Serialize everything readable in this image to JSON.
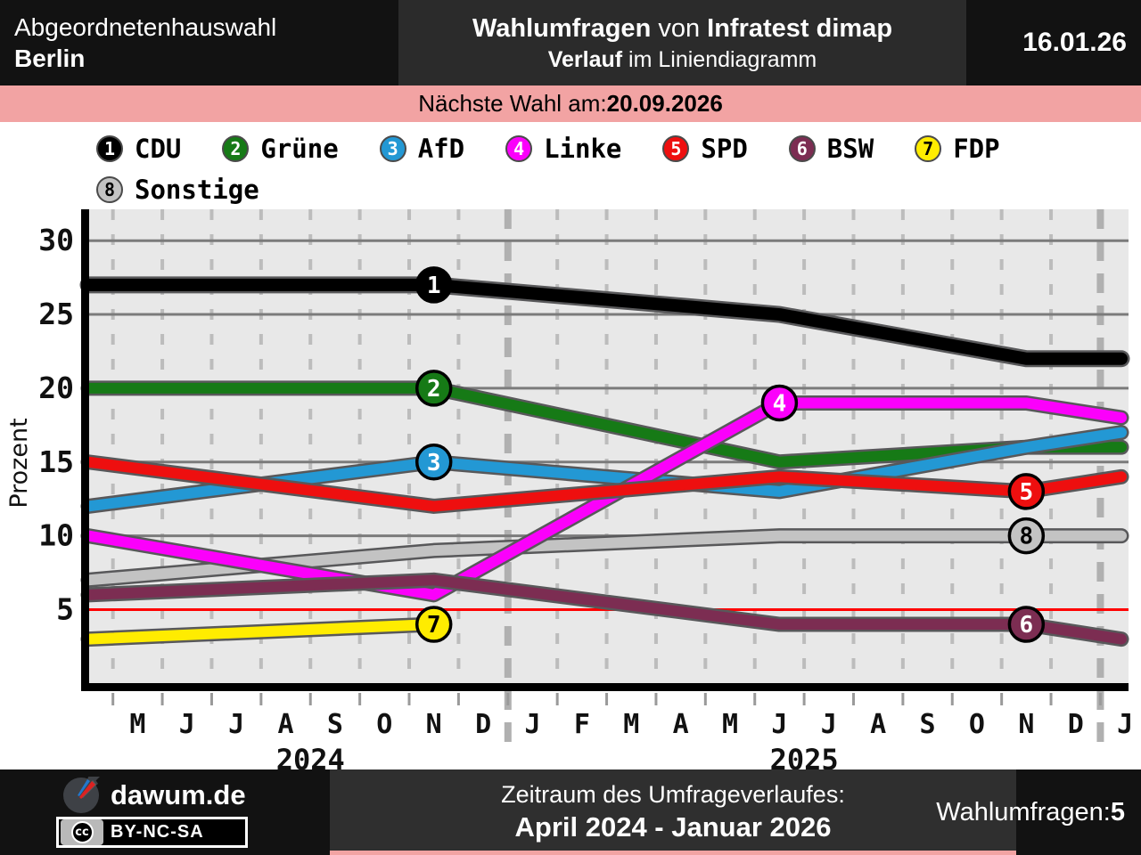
{
  "header": {
    "election_line1": "Abgeordnetenhauswahl",
    "election_line2": "Berlin",
    "title_bold1": "Wahlumfragen",
    "title_sep": " von ",
    "title_bold2": "Infratest dimap",
    "subtitle_bold": "Verlauf",
    "subtitle_rest": " im Liniendiagramm",
    "date": "16.01.26"
  },
  "banner": {
    "label": "Nächste Wahl am: ",
    "date": "20.09.2026",
    "bg_color": "#f2a3a3"
  },
  "legend": {
    "items": [
      {
        "num": "1",
        "label": "CDU",
        "color": "#000000",
        "num_color": "#ffffff"
      },
      {
        "num": "2",
        "label": "Grüne",
        "color": "#167a16",
        "num_color": "#ffffff"
      },
      {
        "num": "3",
        "label": "AfD",
        "color": "#2398d4",
        "num_color": "#ffffff"
      },
      {
        "num": "4",
        "label": "Linke",
        "color": "#fb00fb",
        "num_color": "#ffffff"
      },
      {
        "num": "5",
        "label": "SPD",
        "color": "#ee0f0f",
        "num_color": "#ffffff"
      },
      {
        "num": "6",
        "label": "BSW",
        "color": "#7c2d52",
        "num_color": "#ffffff"
      },
      {
        "num": "7",
        "label": "FDP",
        "color": "#ffec00",
        "num_color": "#000000"
      },
      {
        "num": "8",
        "label": "Sonstige",
        "color": "#c3c3c3",
        "num_color": "#000000"
      }
    ]
  },
  "chart_data": {
    "type": "line",
    "title": "Wahlumfragen von Infratest dimap – Verlauf im Liniendiagramm",
    "ylabel": "Prozent",
    "yticks": [
      5,
      10,
      15,
      20,
      25,
      30
    ],
    "ylim": [
      0,
      32
    ],
    "grid": true,
    "threshold": {
      "value": 5,
      "color": "#ff0000"
    },
    "months": [
      "M",
      "J",
      "J",
      "A",
      "S",
      "O",
      "N",
      "D",
      "J",
      "F",
      "M",
      "A",
      "M",
      "J",
      "J",
      "A",
      "S",
      "O",
      "N",
      "D",
      "J"
    ],
    "years": [
      {
        "label": "2024",
        "from_month": 1,
        "to_month": 8
      },
      {
        "label": "2025",
        "from_month": 9,
        "to_month": 20
      }
    ],
    "year_separator_boundaries": [
      8.5,
      20.5
    ],
    "poll_dates": [
      "2024-04",
      "2024-11",
      "2025-06",
      "2025-11",
      "2026-01"
    ],
    "poll_month_index": [
      0,
      7,
      14,
      19,
      21
    ],
    "series": [
      {
        "num": "1",
        "name": "CDU",
        "color": "#000000",
        "badge_text_color": "#ffffff",
        "badge_poll": 1,
        "values": [
          27,
          27,
          25,
          22,
          22
        ]
      },
      {
        "num": "2",
        "name": "Grüne",
        "color": "#167a16",
        "badge_text_color": "#ffffff",
        "badge_poll": 1,
        "values": [
          20,
          20,
          15,
          16,
          16
        ]
      },
      {
        "num": "3",
        "name": "AfD",
        "color": "#2398d4",
        "badge_text_color": "#ffffff",
        "badge_poll": 1,
        "values": [
          12,
          15,
          13,
          16,
          17
        ]
      },
      {
        "num": "4",
        "name": "Linke",
        "color": "#fb00fb",
        "badge_text_color": "#ffffff",
        "badge_poll": 2,
        "values": [
          10,
          6,
          19,
          19,
          18
        ]
      },
      {
        "num": "5",
        "name": "SPD",
        "color": "#ee0f0f",
        "badge_text_color": "#ffffff",
        "badge_poll": 3,
        "values": [
          15,
          12,
          14,
          13,
          14
        ]
      },
      {
        "num": "6",
        "name": "BSW",
        "color": "#7c2d52",
        "badge_text_color": "#ffffff",
        "badge_poll": 3,
        "values": [
          6,
          7,
          4,
          4,
          3
        ]
      },
      {
        "num": "7",
        "name": "FDP",
        "color": "#ffec00",
        "badge_text_color": "#000000",
        "badge_poll": 1,
        "values": [
          3,
          4,
          null,
          null,
          null
        ]
      },
      {
        "num": "8",
        "name": "Sonstige",
        "color": "#c3c3c3",
        "badge_text_color": "#000000",
        "badge_poll": 3,
        "values": [
          7,
          9,
          10,
          10,
          10
        ]
      }
    ],
    "draw_order": [
      "7",
      "8",
      "2",
      "3",
      "4",
      "5",
      "6",
      "1"
    ],
    "legend_position": "top"
  },
  "footer": {
    "brand": "dawum.de",
    "license": "BY-NC-SA",
    "cc_glyph": "cc",
    "period_label": "Zeitraum des Umfrageverlaufes:",
    "period_value": "April 2024 - Januar 2026",
    "polls_label": "Wahlumfragen: ",
    "polls_count": "5"
  }
}
